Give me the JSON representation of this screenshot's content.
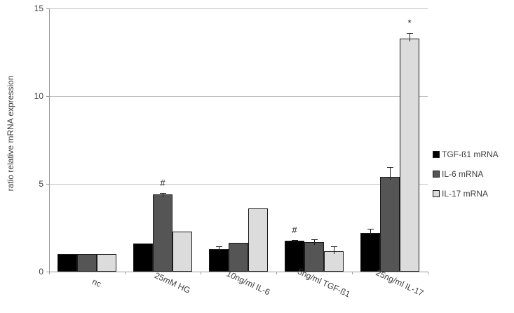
{
  "figure": {
    "background": "#ffffff",
    "axis_color": "#9a9a9a",
    "gridline_color": "#c3c3c3",
    "text_color": "#3f3f3f"
  },
  "chart_data": {
    "type": "bar",
    "title": "",
    "xlabel": "",
    "ylabel": "ratio relative mRNA expression",
    "ylim": [
      0,
      15
    ],
    "yticks": [
      0,
      5,
      10,
      15
    ],
    "grid": "horizontal",
    "legend_position": "right",
    "categories": [
      "nc",
      "25mM HG",
      "10ng/ml IL-6",
      "5ng/ml TGF-ß1",
      "25ng/ml IL-17"
    ],
    "series": [
      {
        "name": "TGF-ß1 mRNA",
        "color": "#000000",
        "values": [
          1.0,
          1.6,
          1.3,
          1.75,
          2.2
        ],
        "errors": [
          0,
          0,
          0.15,
          0.05,
          0.25
        ]
      },
      {
        "name": "IL-6 mRNA",
        "color": "#555555",
        "values": [
          1.0,
          4.4,
          1.65,
          1.7,
          5.4
        ],
        "errors": [
          0,
          0.08,
          0,
          0.15,
          0.55
        ]
      },
      {
        "name": "IL-17 mRNA",
        "color": "#dcdcdc",
        "values": [
          1.0,
          2.3,
          3.6,
          1.15,
          13.3
        ],
        "errors": [
          0,
          0,
          0,
          0.3,
          0.3
        ]
      }
    ],
    "annotations": [
      {
        "symbol": "#",
        "category_index": 1,
        "series_index": 1
      },
      {
        "symbol": "#",
        "category_index": 3,
        "series_index": 0
      },
      {
        "symbol": "*",
        "category_index": 4,
        "series_index": 2
      }
    ]
  }
}
